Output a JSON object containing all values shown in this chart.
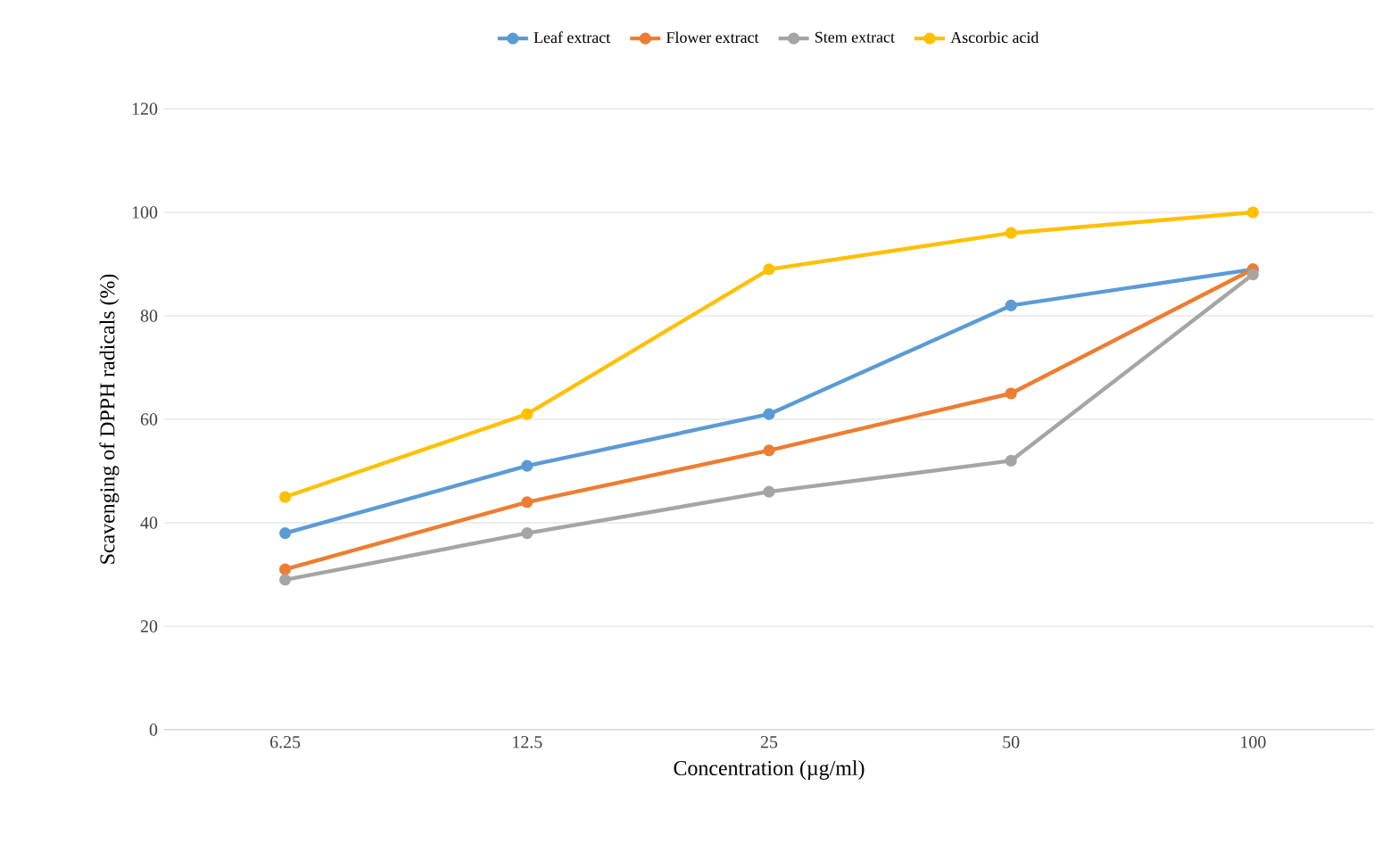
{
  "chart_data": {
    "type": "line",
    "xlabel": "Concentration (µg/ml)",
    "ylabel": "Scavenging of DPPH radicals (%)",
    "categories": [
      "6.25",
      "12.5",
      "25",
      "50",
      "100"
    ],
    "series": [
      {
        "name": "Leaf extract",
        "color": "#5b9bd5",
        "values": [
          38,
          51,
          61,
          82,
          89
        ]
      },
      {
        "name": "Flower extract",
        "color": "#ed7d31",
        "values": [
          31,
          44,
          54,
          65,
          89
        ]
      },
      {
        "name": "Stem extract",
        "color": "#a5a5a5",
        "values": [
          29,
          38,
          46,
          52,
          88
        ]
      },
      {
        "name": "Ascorbic acid",
        "color": "#ffc000",
        "values": [
          45,
          61,
          89,
          96,
          100
        ]
      }
    ],
    "ylim": [
      0,
      120
    ],
    "yticks": [
      0,
      20,
      40,
      60,
      80,
      100,
      120
    ],
    "grid": "y",
    "legend": "top",
    "marker": "circle",
    "line_style": "solid"
  }
}
